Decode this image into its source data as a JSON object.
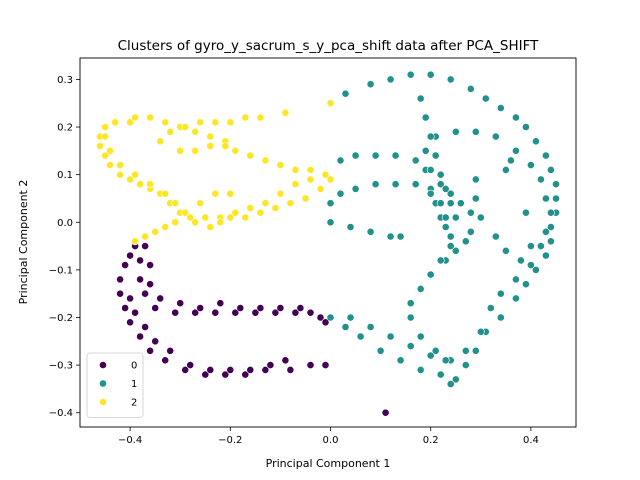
{
  "chart_data": {
    "type": "scatter",
    "title": "Clusters of gyro_y_sacrum_s_y_pca_shift data after PCA_SHIFT",
    "xlabel": "Principal Component 1",
    "ylabel": "Principal Component 2",
    "xlim": [
      -0.5,
      0.49
    ],
    "ylim": [
      -0.43,
      0.345
    ],
    "xticks": [
      -0.4,
      -0.2,
      0.0,
      0.2,
      0.4
    ],
    "xtick_labels": [
      "−0.4",
      "−0.2",
      "0.0",
      "0.2",
      "0.4"
    ],
    "yticks": [
      -0.4,
      -0.3,
      -0.2,
      -0.1,
      0.0,
      0.1,
      0.2,
      0.3
    ],
    "ytick_labels": [
      "−0.4",
      "−0.3",
      "−0.2",
      "−0.1",
      "0.0",
      "0.1",
      "0.2",
      "0.3"
    ],
    "grid": false,
    "legend_position": "lower-left",
    "series": [
      {
        "name": "0",
        "color": "#440154",
        "points": [
          [
            -0.39,
            -0.05
          ],
          [
            -0.4,
            -0.07
          ],
          [
            -0.41,
            -0.09
          ],
          [
            -0.42,
            -0.12
          ],
          [
            -0.42,
            -0.15
          ],
          [
            -0.41,
            -0.18
          ],
          [
            -0.4,
            -0.21
          ],
          [
            -0.38,
            -0.24
          ],
          [
            -0.36,
            -0.27
          ],
          [
            -0.33,
            -0.29
          ],
          [
            -0.29,
            -0.31
          ],
          [
            -0.25,
            -0.32
          ],
          [
            -0.21,
            -0.32
          ],
          [
            -0.17,
            -0.32
          ],
          [
            -0.13,
            -0.31
          ],
          [
            -0.08,
            -0.31
          ],
          [
            -0.04,
            -0.3
          ],
          [
            -0.01,
            -0.3
          ],
          [
            -0.37,
            -0.05
          ],
          [
            -0.38,
            -0.08
          ],
          [
            -0.38,
            -0.12
          ],
          [
            -0.37,
            -0.15
          ],
          [
            -0.35,
            -0.18
          ],
          [
            -0.31,
            -0.19
          ],
          [
            -0.27,
            -0.19
          ],
          [
            -0.23,
            -0.19
          ],
          [
            -0.19,
            -0.19
          ],
          [
            -0.15,
            -0.19
          ],
          [
            -0.11,
            -0.19
          ],
          [
            -0.07,
            -0.19
          ],
          [
            -0.04,
            -0.19
          ],
          [
            -0.02,
            -0.2
          ],
          [
            -0.01,
            -0.21
          ],
          [
            -0.36,
            -0.09
          ],
          [
            -0.36,
            -0.13
          ],
          [
            -0.34,
            -0.16
          ],
          [
            -0.3,
            -0.17
          ],
          [
            -0.26,
            -0.18
          ],
          [
            -0.22,
            -0.17
          ],
          [
            -0.18,
            -0.18
          ],
          [
            -0.14,
            -0.18
          ],
          [
            -0.1,
            -0.18
          ],
          [
            -0.06,
            -0.18
          ],
          [
            -0.4,
            -0.16
          ],
          [
            -0.39,
            -0.19
          ],
          [
            -0.37,
            -0.22
          ],
          [
            -0.35,
            -0.25
          ],
          [
            -0.32,
            -0.27
          ],
          [
            -0.28,
            -0.3
          ],
          [
            -0.24,
            -0.31
          ],
          [
            -0.2,
            -0.31
          ],
          [
            -0.16,
            -0.31
          ],
          [
            -0.12,
            -0.3
          ],
          [
            -0.09,
            -0.29
          ],
          [
            0.11,
            -0.4
          ]
        ]
      },
      {
        "name": "1",
        "color": "#21918c",
        "points": [
          [
            0.03,
            0.27
          ],
          [
            0.08,
            0.29
          ],
          [
            0.12,
            0.3
          ],
          [
            0.16,
            0.31
          ],
          [
            0.2,
            0.31
          ],
          [
            0.24,
            0.3
          ],
          [
            0.28,
            0.28
          ],
          [
            0.31,
            0.26
          ],
          [
            0.34,
            0.24
          ],
          [
            0.37,
            0.22
          ],
          [
            0.39,
            0.2
          ],
          [
            0.41,
            0.17
          ],
          [
            0.43,
            0.14
          ],
          [
            0.44,
            0.11
          ],
          [
            0.45,
            0.08
          ],
          [
            0.45,
            0.05
          ],
          [
            0.45,
            0.02
          ],
          [
            0.44,
            -0.01
          ],
          [
            0.44,
            -0.04
          ],
          [
            0.43,
            -0.07
          ],
          [
            0.41,
            -0.1
          ],
          [
            0.39,
            -0.13
          ],
          [
            0.37,
            -0.16
          ],
          [
            0.34,
            -0.2
          ],
          [
            0.31,
            -0.23
          ],
          [
            0.29,
            -0.27
          ],
          [
            0.27,
            -0.3
          ],
          [
            0.25,
            -0.33
          ],
          [
            0.24,
            -0.34
          ],
          [
            0.22,
            -0.32
          ],
          [
            0.18,
            -0.31
          ],
          [
            0.14,
            -0.29
          ],
          [
            0.1,
            -0.27
          ],
          [
            0.06,
            -0.24
          ],
          [
            0.03,
            -0.22
          ],
          [
            0.0,
            -0.2
          ],
          [
            0.04,
            -0.2
          ],
          [
            0.08,
            -0.22
          ],
          [
            0.12,
            -0.24
          ],
          [
            0.16,
            -0.26
          ],
          [
            0.2,
            -0.28
          ],
          [
            0.24,
            -0.29
          ],
          [
            0.27,
            -0.27
          ],
          [
            0.3,
            -0.23
          ],
          [
            0.32,
            -0.18
          ],
          [
            0.34,
            -0.15
          ],
          [
            0.37,
            -0.12
          ],
          [
            0.4,
            -0.09
          ],
          [
            0.42,
            -0.05
          ],
          [
            0.43,
            -0.02
          ],
          [
            0.44,
            0.02
          ],
          [
            0.43,
            0.05
          ],
          [
            0.42,
            0.09
          ],
          [
            0.4,
            0.12
          ],
          [
            0.37,
            0.15
          ],
          [
            0.33,
            0.18
          ],
          [
            0.29,
            0.19
          ],
          [
            0.25,
            0.19
          ],
          [
            0.21,
            0.18
          ],
          [
            0.19,
            0.15
          ],
          [
            0.19,
            0.11
          ],
          [
            0.2,
            0.07
          ],
          [
            0.21,
            0.04
          ],
          [
            0.22,
            0.01
          ],
          [
            0.23,
            -0.01
          ],
          [
            0.24,
            -0.03
          ],
          [
            0.23,
            0.01
          ],
          [
            0.22,
            0.04
          ],
          [
            0.2,
            0.06
          ],
          [
            0.17,
            0.08
          ],
          [
            0.13,
            0.08
          ],
          [
            0.09,
            0.08
          ],
          [
            0.05,
            0.07
          ],
          [
            0.02,
            0.06
          ],
          [
            0.0,
            0.04
          ],
          [
            0.02,
            0.13
          ],
          [
            0.05,
            0.14
          ],
          [
            0.09,
            0.14
          ],
          [
            0.13,
            0.14
          ],
          [
            0.17,
            0.13
          ],
          [
            0.2,
            0.11
          ],
          [
            0.22,
            0.08
          ],
          [
            0.24,
            0.06
          ],
          [
            0.26,
            0.04
          ],
          [
            0.28,
            0.02
          ],
          [
            0.28,
            -0.02
          ],
          [
            0.27,
            -0.04
          ],
          [
            0.25,
            -0.06
          ],
          [
            0.23,
            -0.08
          ],
          [
            0.2,
            -0.11
          ],
          [
            0.18,
            -0.14
          ],
          [
            0.16,
            -0.17
          ],
          [
            0.16,
            -0.2
          ],
          [
            0.18,
            -0.24
          ],
          [
            0.21,
            -0.27
          ],
          [
            0.23,
            -0.29
          ],
          [
            0.18,
            0.26
          ],
          [
            0.19,
            0.22
          ],
          [
            0.2,
            0.18
          ],
          [
            0.21,
            0.14
          ],
          [
            0.22,
            0.1
          ],
          [
            0.23,
            0.07
          ],
          [
            0.24,
            0.04
          ],
          [
            0.25,
            0.01
          ],
          [
            0.24,
            -0.05
          ],
          [
            0.22,
            -0.08
          ],
          [
            0.0,
            0.0
          ],
          [
            0.04,
            -0.01
          ],
          [
            0.08,
            -0.02
          ],
          [
            0.12,
            -0.03
          ],
          [
            0.14,
            -0.03
          ],
          [
            0.35,
            0.11
          ],
          [
            0.36,
            0.13
          ],
          [
            0.39,
            0.02
          ],
          [
            0.4,
            -0.05
          ],
          [
            0.38,
            -0.08
          ],
          [
            0.35,
            -0.06
          ],
          [
            0.33,
            -0.03
          ],
          [
            0.3,
            0.01
          ],
          [
            0.29,
            0.05
          ],
          [
            0.29,
            0.09
          ]
        ]
      },
      {
        "name": "2",
        "color": "#fde725",
        "points": [
          [
            -0.4,
            0.21
          ],
          [
            -0.43,
            0.21
          ],
          [
            -0.45,
            0.2
          ],
          [
            -0.46,
            0.18
          ],
          [
            -0.46,
            0.16
          ],
          [
            -0.45,
            0.14
          ],
          [
            -0.44,
            0.12
          ],
          [
            -0.42,
            0.1
          ],
          [
            -0.4,
            0.09
          ],
          [
            -0.38,
            0.08
          ],
          [
            -0.36,
            0.07
          ],
          [
            -0.34,
            0.06
          ],
          [
            -0.32,
            0.04
          ],
          [
            -0.3,
            0.02
          ],
          [
            -0.28,
            0.01
          ],
          [
            -0.25,
            0.01
          ],
          [
            -0.22,
            0.01
          ],
          [
            -0.19,
            0.02
          ],
          [
            -0.16,
            0.03
          ],
          [
            -0.13,
            0.04
          ],
          [
            -0.1,
            0.06
          ],
          [
            -0.07,
            0.08
          ],
          [
            -0.04,
            0.09
          ],
          [
            -0.01,
            0.1
          ],
          [
            -0.39,
            0.22
          ],
          [
            -0.36,
            0.22
          ],
          [
            -0.33,
            0.21
          ],
          [
            -0.3,
            0.2
          ],
          [
            -0.27,
            0.19
          ],
          [
            -0.24,
            0.18
          ],
          [
            -0.21,
            0.17
          ],
          [
            -0.19,
            0.15
          ],
          [
            -0.16,
            0.14
          ],
          [
            -0.13,
            0.13
          ],
          [
            -0.1,
            0.12
          ],
          [
            -0.07,
            0.11
          ],
          [
            -0.04,
            0.11
          ],
          [
            -0.45,
            0.18
          ],
          [
            -0.44,
            0.15
          ],
          [
            -0.42,
            0.12
          ],
          [
            -0.39,
            0.1
          ],
          [
            -0.36,
            0.08
          ],
          [
            -0.33,
            0.06
          ],
          [
            -0.31,
            0.04
          ],
          [
            -0.29,
            0.02
          ],
          [
            -0.27,
            0.0
          ],
          [
            -0.24,
            -0.01
          ],
          [
            -0.22,
            0.0
          ],
          [
            -0.2,
            0.01
          ],
          [
            -0.17,
            0.01
          ],
          [
            -0.14,
            0.02
          ],
          [
            -0.11,
            0.03
          ],
          [
            -0.08,
            0.04
          ],
          [
            -0.05,
            0.05
          ],
          [
            -0.02,
            0.07
          ],
          [
            0.0,
            0.09
          ],
          [
            -0.39,
            -0.04
          ],
          [
            -0.37,
            -0.03
          ],
          [
            -0.35,
            -0.02
          ],
          [
            -0.33,
            -0.01
          ],
          [
            -0.31,
            0.0
          ],
          [
            -0.29,
            0.02
          ],
          [
            -0.26,
            0.04
          ],
          [
            -0.23,
            0.06
          ],
          [
            -0.2,
            0.06
          ],
          [
            -0.34,
            0.17
          ],
          [
            -0.32,
            0.19
          ],
          [
            -0.29,
            0.2
          ],
          [
            -0.26,
            0.21
          ],
          [
            -0.23,
            0.21
          ],
          [
            -0.2,
            0.21
          ],
          [
            -0.17,
            0.22
          ],
          [
            -0.14,
            0.22
          ],
          [
            -0.09,
            0.23
          ],
          [
            0.0,
            0.25
          ],
          [
            -0.3,
            0.15
          ],
          [
            -0.27,
            0.15
          ],
          [
            -0.24,
            0.16
          ],
          [
            -0.21,
            0.16
          ]
        ]
      }
    ]
  }
}
